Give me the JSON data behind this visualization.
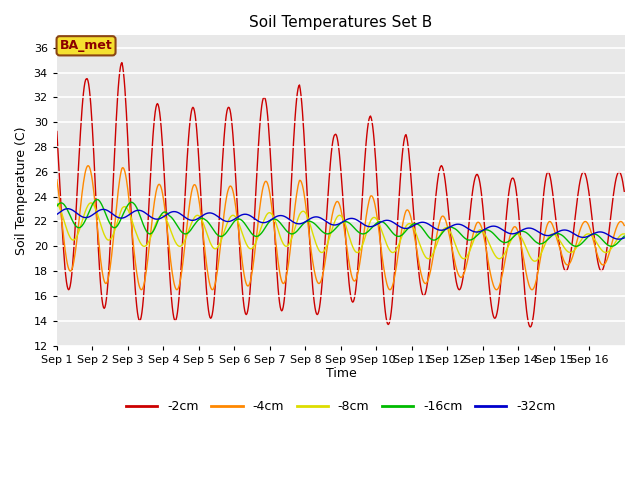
{
  "title": "Soil Temperatures Set B",
  "xlabel": "Time",
  "ylabel": "Soil Temperature (C)",
  "ylim": [
    12,
    37
  ],
  "yticks": [
    12,
    14,
    16,
    18,
    20,
    22,
    24,
    26,
    28,
    30,
    32,
    34,
    36
  ],
  "annotation": "BA_met",
  "background_color": "#e8e8e8",
  "series_colors": [
    "#cc0000",
    "#ff8800",
    "#dddd00",
    "#00bb00",
    "#0000cc"
  ],
  "series_labels": [
    "-2cm",
    "-4cm",
    "-8cm",
    "-16cm",
    "-32cm"
  ],
  "n_days": 16,
  "n_points_per_day": 48
}
